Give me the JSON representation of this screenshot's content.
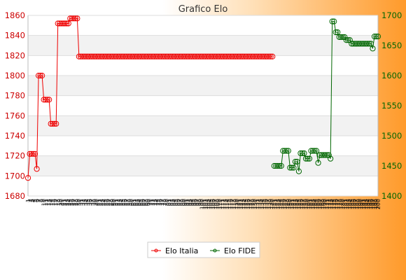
{
  "chart_data": {
    "type": "line",
    "title": "Grafico Elo",
    "legend_position": "bottom-center",
    "grid": true,
    "axes": {
      "left": {
        "ylim": [
          1680,
          1860
        ],
        "ticks": [
          1680,
          1700,
          1720,
          1740,
          1760,
          1780,
          1800,
          1820,
          1840,
          1860
        ],
        "color": "#cc0000"
      },
      "right": {
        "ylim": [
          1400,
          1700
        ],
        "ticks": [
          1400,
          1450,
          1500,
          1550,
          1600,
          1650,
          1700
        ],
        "color": "#006600"
      }
    },
    "x_tick_labels": [
      "1",
      "2",
      "3",
      "4",
      "5",
      "6",
      "7",
      "8",
      "9",
      "10",
      "11",
      "12",
      "13",
      "14",
      "15",
      "16",
      "17",
      "18",
      "19",
      "20",
      "21",
      "22",
      "23",
      "24",
      "25",
      "26",
      "27",
      "28",
      "29",
      "30",
      "31",
      "32",
      "33",
      "34",
      "35",
      "36",
      "37",
      "38",
      "39",
      "40",
      "41",
      "42",
      "43",
      "44",
      "45",
      "46",
      "47",
      "48",
      "49",
      "50",
      "51",
      "52",
      "53",
      "54",
      "55",
      "56",
      "57",
      "58",
      "59",
      "60",
      "61",
      "62",
      "63",
      "64",
      "65",
      "66",
      "67",
      "68",
      "69",
      "70",
      "71",
      "72",
      "73",
      "74",
      "75",
      "76",
      "77",
      "78",
      "79",
      "80",
      "81",
      "82",
      "83",
      "84",
      "85",
      "86",
      "87",
      "88",
      "89",
      "90",
      "91",
      "92",
      "93",
      "94",
      "95",
      "96",
      "97",
      "98",
      "99",
      "100",
      "101",
      "102",
      "103",
      "104",
      "105",
      "106",
      "107",
      "108",
      "109",
      "110",
      "111",
      "112",
      "113",
      "114",
      "115",
      "116",
      "117",
      "118",
      "119",
      "120",
      "121",
      "122",
      "123",
      "124",
      "125",
      "126",
      "127",
      "128",
      "129",
      "130",
      "131",
      "132",
      "133",
      "134",
      "135",
      "136",
      "137",
      "138",
      "139",
      "140",
      "141",
      "142",
      "143",
      "144",
      "145",
      "146",
      "147",
      "148",
      "149",
      "150",
      "151",
      "152",
      "153",
      "154",
      "155",
      "156",
      "157",
      "158",
      "159",
      "160",
      "161",
      "162",
      "163",
      "164",
      "165",
      "166",
      "167",
      "168",
      "169",
      "170",
      "171",
      "172",
      "173",
      "174",
      "175",
      "176",
      "177",
      "178",
      "179",
      "180",
      "181",
      "182",
      "183",
      "184",
      "185",
      "186",
      "187",
      "188",
      "189",
      "190",
      "191",
      "192",
      "193",
      "194",
      "195",
      "196",
      "197",
      "198",
      "199",
      "200"
    ],
    "series": [
      {
        "name": "Elo Italia",
        "axis": "left",
        "color": "#ee0000",
        "x": [
          1,
          2,
          3,
          4,
          5,
          6,
          7,
          8,
          9,
          10,
          11,
          12,
          13,
          14,
          15,
          16,
          17,
          18,
          19,
          20,
          21,
          22,
          23,
          24,
          25,
          26,
          27,
          28,
          29,
          30,
          31,
          32,
          33,
          34,
          35,
          36,
          37,
          38,
          39,
          40,
          41,
          42,
          43,
          44,
          45,
          46,
          47,
          48,
          49,
          50,
          51,
          52,
          53,
          54,
          55,
          56,
          57,
          58,
          59,
          60,
          61,
          62,
          63,
          64,
          65,
          66,
          67,
          68,
          69,
          70,
          71,
          72,
          73,
          74,
          75,
          76,
          77,
          78,
          79,
          80,
          81,
          82,
          83,
          84,
          85,
          86,
          87,
          88,
          89,
          90,
          91,
          92,
          93,
          94,
          95,
          96,
          97,
          98,
          99,
          100,
          101,
          102,
          103,
          104,
          105,
          106,
          107,
          108,
          109,
          110,
          111,
          112,
          113,
          114,
          115,
          116,
          117,
          118,
          119,
          120,
          121,
          122,
          123,
          124,
          125,
          126,
          127,
          128,
          129,
          130,
          131,
          132,
          133,
          134,
          135,
          136,
          137,
          138,
          139,
          140
        ],
        "values": [
          1698,
          1722,
          1722,
          1722,
          1722,
          1707,
          1800,
          1800,
          1800,
          1776,
          1776,
          1776,
          1776,
          1752,
          1752,
          1752,
          1752,
          1852,
          1852,
          1852,
          1852,
          1852,
          1852,
          1852,
          1857,
          1857,
          1857,
          1857,
          1857,
          1819,
          1819,
          1819,
          1819,
          1819,
          1819,
          1819,
          1819,
          1819,
          1819,
          1819,
          1819,
          1819,
          1819,
          1819,
          1819,
          1819,
          1819,
          1819,
          1819,
          1819,
          1819,
          1819,
          1819,
          1819,
          1819,
          1819,
          1819,
          1819,
          1819,
          1819,
          1819,
          1819,
          1819,
          1819,
          1819,
          1819,
          1819,
          1819,
          1819,
          1819,
          1819,
          1819,
          1819,
          1819,
          1819,
          1819,
          1819,
          1819,
          1819,
          1819,
          1819,
          1819,
          1819,
          1819,
          1819,
          1819,
          1819,
          1819,
          1819,
          1819,
          1819,
          1819,
          1819,
          1819,
          1819,
          1819,
          1819,
          1819,
          1819,
          1819,
          1819,
          1819,
          1819,
          1819,
          1819,
          1819,
          1819,
          1819,
          1819,
          1819,
          1819,
          1819,
          1819,
          1819,
          1819,
          1819,
          1819,
          1819,
          1819,
          1819,
          1819,
          1819,
          1819,
          1819,
          1819,
          1819,
          1819,
          1819,
          1819,
          1819,
          1819,
          1819,
          1819,
          1819,
          1819,
          1819,
          1819,
          1819,
          1819,
          1819
        ]
      },
      {
        "name": "Elo FIDE",
        "axis": "right",
        "color": "#006600",
        "x": [
          141,
          142,
          143,
          144,
          145,
          146,
          147,
          148,
          149,
          150,
          151,
          152,
          153,
          154,
          155,
          156,
          157,
          158,
          159,
          160,
          161,
          162,
          163,
          164,
          165,
          166,
          167,
          168,
          169,
          170,
          171,
          172,
          173,
          174,
          175,
          176,
          177,
          178,
          179,
          180,
          181,
          182,
          183,
          184,
          185,
          186,
          187,
          188,
          189,
          190,
          191,
          192,
          193,
          194,
          195,
          196,
          197,
          198,
          199,
          200
        ],
        "values": [
          1450,
          1450,
          1450,
          1450,
          1450,
          1475,
          1475,
          1475,
          1475,
          1447,
          1447,
          1447,
          1457,
          1457,
          1441,
          1471,
          1471,
          1471,
          1462,
          1462,
          1462,
          1475,
          1475,
          1475,
          1475,
          1455,
          1468,
          1468,
          1468,
          1468,
          1468,
          1468,
          1462,
          1690,
          1690,
          1672,
          1672,
          1664,
          1664,
          1664,
          1664,
          1659,
          1659,
          1659,
          1653,
          1653,
          1653,
          1653,
          1653,
          1653,
          1653,
          1653,
          1653,
          1653,
          1653,
          1653,
          1645,
          1665,
          1665,
          1665
        ]
      }
    ]
  }
}
